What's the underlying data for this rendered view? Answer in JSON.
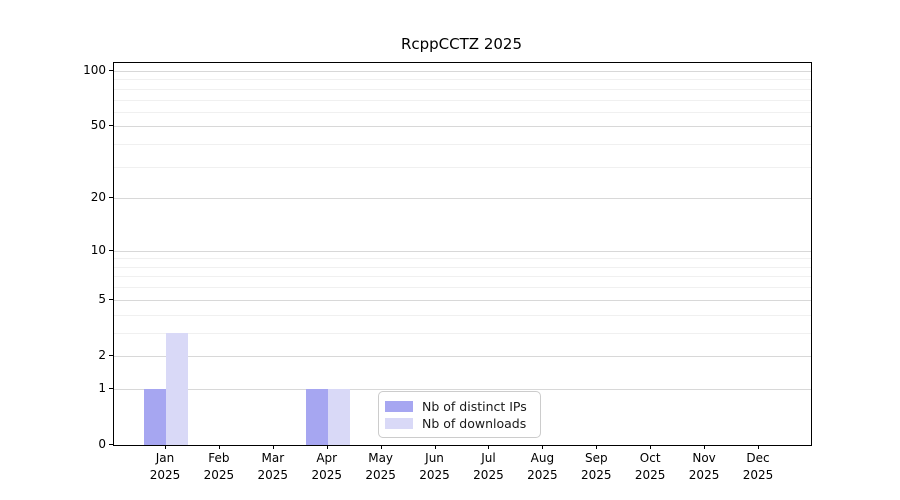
{
  "title": "RcppCCTZ 2025",
  "chart_data": {
    "type": "bar",
    "title": "RcppCCTZ 2025",
    "categories": [
      "Jan",
      "Feb",
      "Mar",
      "Apr",
      "May",
      "Jun",
      "Jul",
      "Aug",
      "Sep",
      "Oct",
      "Nov",
      "Dec"
    ],
    "year_label": "2025",
    "series": [
      {
        "name": "Nb of distinct IPs",
        "color": "#a6a6f1",
        "values": [
          1,
          0,
          0,
          1,
          0,
          0,
          0,
          0,
          0,
          0,
          0,
          0
        ]
      },
      {
        "name": "Nb of downloads",
        "color": "#d9d9f7",
        "values": [
          3,
          0,
          0,
          1,
          0,
          0,
          0,
          0,
          0,
          0,
          0,
          0
        ]
      }
    ],
    "yscale": "log10(1+y)",
    "yticks": [
      0,
      1,
      2,
      5,
      10,
      20,
      50,
      100
    ],
    "minor_yticks": [
      3,
      4,
      6,
      7,
      8,
      9,
      30,
      40,
      60,
      70,
      80,
      90
    ],
    "ylim": [
      0,
      110.4
    ],
    "xlabel": "",
    "ylabel": "",
    "grid": true,
    "legend_position": "inside-bottom-center"
  },
  "colors": {
    "background": "#ffffff",
    "spine": "#000000",
    "grid_major": "#d8d8d8",
    "grid_minor": "#f0f0f0",
    "text": "#000000",
    "legend_border": "#cccccc"
  }
}
